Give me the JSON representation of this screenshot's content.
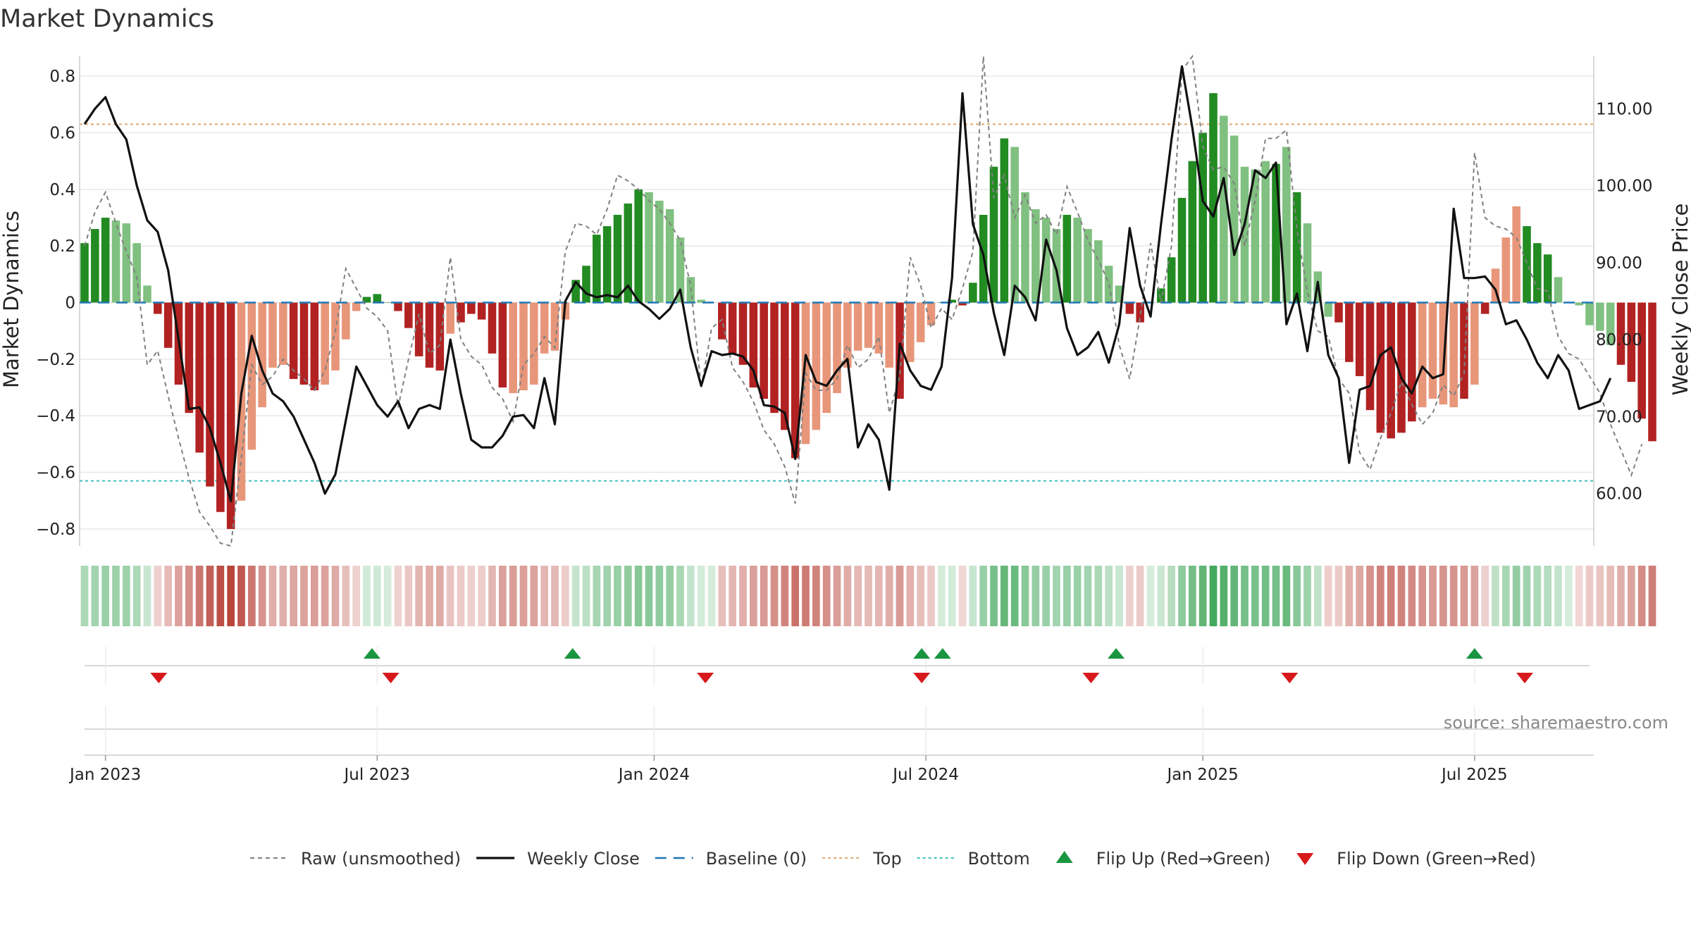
{
  "chart_data": {
    "type": "bar",
    "title": "Market Dynamics",
    "ylabel_left": "Market Dynamics",
    "ylabel_right": "Weekly Close Price",
    "ylim_left": [
      -0.86,
      0.87
    ],
    "ylim_right": [
      53.2,
      116.8
    ],
    "yticks_left": [
      0.8,
      0.6,
      0.4,
      0.2,
      0,
      -0.2,
      -0.4,
      -0.6,
      -0.8
    ],
    "yticks_left_labels": [
      "0.8",
      "0.6",
      "0.4",
      "0.2",
      "0",
      "−0.2",
      "−0.4",
      "−0.6",
      "−0.8"
    ],
    "yticks_right": [
      110,
      100,
      90,
      80,
      70,
      60
    ],
    "yticks_right_labels": [
      "110.00",
      "100.00",
      "90.00",
      "80.00",
      "70.00",
      "60.00"
    ],
    "x_start": "2022-12-19",
    "x_weeks": 145,
    "xticks": [
      {
        "label": "Jan 2023",
        "week": 2
      },
      {
        "label": "Jul 2023",
        "week": 28
      },
      {
        "label": "Jan 2024",
        "week": 54.5
      },
      {
        "label": "Jul 2024",
        "week": 80.5
      },
      {
        "label": "Jan 2025",
        "week": 107
      },
      {
        "label": "Jul 2025",
        "week": 133
      }
    ],
    "top_level": 0.63,
    "bottom_level": -0.63,
    "baseline": 0,
    "colors": {
      "green_strong": "#228B22",
      "green_light": "#80C080",
      "red_strong": "#B22222",
      "red_light": "#E8967A",
      "raw": "#808080",
      "close": "#111111",
      "baseline": "#1f77b4",
      "top": "#E0A870",
      "bottom": "#40C0C0",
      "flip_up": "#1a9641",
      "flip_down": "#d7191c"
    },
    "series": [
      {
        "name": "Market Dynamics",
        "values": [
          0.21,
          0.26,
          0.3,
          0.29,
          0.28,
          0.21,
          0.06,
          -0.04,
          -0.16,
          -0.29,
          -0.39,
          -0.53,
          -0.65,
          -0.74,
          -0.8,
          -0.7,
          -0.52,
          -0.37,
          -0.23,
          -0.22,
          -0.27,
          -0.29,
          -0.31,
          -0.29,
          -0.24,
          -0.13,
          -0.03,
          0.02,
          0.03,
          0.0,
          -0.03,
          -0.09,
          -0.19,
          -0.23,
          -0.24,
          -0.11,
          -0.07,
          -0.04,
          -0.06,
          -0.18,
          -0.3,
          -0.32,
          -0.31,
          -0.29,
          -0.18,
          -0.17,
          -0.06,
          0.08,
          0.13,
          0.24,
          0.27,
          0.31,
          0.35,
          0.4,
          0.39,
          0.36,
          0.33,
          0.23,
          0.09,
          0.01,
          0.0,
          -0.13,
          -0.18,
          -0.22,
          -0.3,
          -0.34,
          -0.39,
          -0.45,
          -0.55,
          -0.5,
          -0.45,
          -0.39,
          -0.32,
          -0.23,
          -0.17,
          -0.16,
          -0.18,
          -0.23,
          -0.34,
          -0.21,
          -0.14,
          -0.08,
          0.0,
          0.01,
          -0.01,
          0.07,
          0.31,
          0.48,
          0.58,
          0.55,
          0.39,
          0.33,
          0.3,
          0.26,
          0.31,
          0.3,
          0.26,
          0.22,
          0.13,
          0.06,
          -0.04,
          -0.07,
          0.0,
          0.05,
          0.16,
          0.37,
          0.5,
          0.6,
          0.74,
          0.66,
          0.59,
          0.48,
          0.47,
          0.5,
          0.49,
          0.55,
          0.39,
          0.28,
          0.11,
          -0.05,
          -0.07,
          -0.21,
          -0.26,
          -0.38,
          -0.46,
          -0.48,
          -0.46,
          -0.42,
          -0.37,
          -0.34,
          -0.36,
          -0.37,
          -0.34,
          -0.29,
          -0.04,
          0.12,
          0.23,
          0.34,
          0.27,
          0.21,
          0.17,
          0.09,
          0.0,
          -0.01,
          -0.08,
          -0.1,
          -0.15,
          -0.22,
          -0.28,
          -0.41,
          -0.49
        ],
        "colors": [
          "g",
          "g",
          "g",
          "gl",
          "gl",
          "gl",
          "gl",
          "r",
          "r",
          "r",
          "r",
          "r",
          "r",
          "r",
          "r",
          "rl",
          "rl",
          "rl",
          "rl",
          "rl",
          "r",
          "r",
          "r",
          "rl",
          "rl",
          "rl",
          "rl",
          "g",
          "g",
          "g",
          "r",
          "r",
          "r",
          "r",
          "r",
          "rl",
          "r",
          "r",
          "r",
          "r",
          "r",
          "rl",
          "rl",
          "rl",
          "rl",
          "rl",
          "rl",
          "g",
          "g",
          "g",
          "g",
          "g",
          "g",
          "g",
          "gl",
          "gl",
          "gl",
          "gl",
          "gl",
          "gl",
          "gl",
          "r",
          "r",
          "r",
          "r",
          "r",
          "r",
          "r",
          "r",
          "rl",
          "rl",
          "rl",
          "rl",
          "rl",
          "rl",
          "rl",
          "rl",
          "rl",
          "r",
          "rl",
          "rl",
          "rl",
          "g",
          "g",
          "r",
          "g",
          "g",
          "g",
          "g",
          "gl",
          "gl",
          "gl",
          "gl",
          "gl",
          "g",
          "gl",
          "gl",
          "gl",
          "gl",
          "gl",
          "r",
          "r",
          "g",
          "g",
          "g",
          "g",
          "g",
          "g",
          "g",
          "gl",
          "gl",
          "gl",
          "gl",
          "gl",
          "g",
          "gl",
          "g",
          "gl",
          "gl",
          "gl",
          "r",
          "r",
          "r",
          "r",
          "r",
          "r",
          "r",
          "r",
          "rl",
          "rl",
          "rl",
          "rl",
          "r",
          "rl",
          "r",
          "rl",
          "rl",
          "rl",
          "g",
          "g",
          "g",
          "gl",
          "gl",
          "gl",
          "gl",
          "gl",
          "gl",
          "r",
          "r",
          "r",
          "r",
          "r",
          "r",
          "r",
          "r"
        ]
      },
      {
        "name": "Raw (unsmoothed)",
        "values": [
          0.2,
          0.32,
          0.39,
          0.28,
          0.18,
          0.09,
          -0.22,
          -0.17,
          -0.33,
          -0.48,
          -0.62,
          -0.74,
          -0.79,
          -0.85,
          -0.86,
          -0.55,
          -0.22,
          -0.29,
          -0.26,
          -0.2,
          -0.24,
          -0.27,
          -0.31,
          -0.24,
          -0.1,
          0.12,
          0.05,
          -0.02,
          -0.05,
          -0.1,
          -0.37,
          -0.2,
          -0.04,
          -0.18,
          -0.15,
          0.16,
          -0.13,
          -0.19,
          -0.22,
          -0.3,
          -0.34,
          -0.42,
          -0.22,
          -0.18,
          -0.12,
          -0.16,
          0.18,
          0.28,
          0.27,
          0.24,
          0.33,
          0.45,
          0.43,
          0.4,
          0.36,
          0.33,
          0.28,
          0.22,
          0.06,
          -0.3,
          -0.09,
          -0.06,
          -0.23,
          -0.28,
          -0.35,
          -0.45,
          -0.5,
          -0.58,
          -0.71,
          -0.25,
          -0.31,
          -0.31,
          -0.27,
          -0.15,
          -0.23,
          -0.2,
          -0.12,
          -0.39,
          -0.26,
          0.16,
          0.06,
          -0.09,
          -0.02,
          -0.06,
          0.05,
          0.18,
          0.87,
          0.37,
          0.45,
          0.3,
          0.38,
          0.28,
          0.31,
          0.24,
          0.41,
          0.32,
          0.22,
          0.15,
          0.07,
          -0.15,
          -0.27,
          -0.05,
          0.21,
          0.0,
          0.2,
          0.82,
          0.87,
          0.55,
          0.47,
          0.48,
          0.42,
          0.2,
          0.36,
          0.58,
          0.58,
          0.61,
          0.26,
          0.04,
          -0.1,
          -0.12,
          -0.27,
          -0.32,
          -0.53,
          -0.59,
          -0.48,
          -0.39,
          -0.28,
          -0.36,
          -0.43,
          -0.39,
          -0.29,
          -0.33,
          -0.25,
          0.53,
          0.3,
          0.27,
          0.26,
          0.23,
          0.14,
          0.05,
          0.04,
          -0.12,
          -0.18,
          -0.2,
          -0.26,
          -0.32,
          -0.43,
          -0.52,
          -0.61,
          -0.5
        ]
      },
      {
        "name": "Weekly Close",
        "values": [
          108.0,
          110.0,
          111.5,
          108.0,
          106.0,
          100.0,
          95.5,
          94.0,
          89.0,
          80.0,
          71.0,
          71.2,
          68.5,
          64.0,
          59.0,
          73.0,
          80.5,
          76.0,
          73.0,
          72.0,
          70.0,
          67.0,
          64.0,
          60.0,
          62.5,
          69.5,
          76.5,
          74.0,
          71.5,
          70.0,
          72.0,
          68.5,
          71.0,
          71.5,
          71.0,
          80.0,
          73.0,
          67.0,
          66.0,
          66.0,
          67.5,
          70.0,
          70.2,
          68.5,
          75.0,
          69.0,
          85.0,
          87.5,
          86.0,
          85.5,
          85.8,
          85.5,
          87.0,
          85.0,
          84.0,
          82.7,
          84.0,
          86.5,
          79.0,
          74.0,
          78.5,
          78.0,
          78.2,
          77.8,
          76.0,
          71.5,
          71.3,
          70.5,
          64.5,
          78.0,
          74.5,
          74.0,
          76.0,
          77.5,
          66.0,
          69.0,
          67.0,
          60.5,
          79.5,
          76.0,
          74.0,
          73.5,
          76.5,
          88.0,
          112.0,
          95.0,
          91.0,
          83.5,
          78.0,
          87.0,
          85.5,
          82.5,
          93.0,
          89.0,
          81.5,
          78.0,
          79.0,
          81.0,
          77.0,
          82.0,
          94.5,
          87.0,
          83.0,
          95.0,
          106.0,
          115.5,
          107.5,
          98.0,
          96.0,
          101.0,
          91.0,
          95.0,
          102.0,
          101.0,
          103.0,
          82.0,
          86.0,
          78.5,
          87.5,
          78.0,
          75.0,
          64.0,
          73.5,
          74.0,
          78.0,
          79.0,
          75.0,
          73.0,
          76.5,
          75.0,
          75.5,
          97.0,
          88.0,
          88.0,
          88.2,
          86.5,
          82.0,
          82.5,
          80.0,
          77.0,
          75.0,
          78.0,
          76.0,
          71.0,
          71.5,
          72.0,
          75.0
        ]
      }
    ],
    "flips_up_weeks": [
      27.5,
      46.7,
      80.1,
      82.1,
      98.7,
      133.0
    ],
    "flips_down_weeks": [
      7.1,
      29.3,
      59.4,
      80.1,
      96.3,
      115.3,
      137.8
    ],
    "legend": [
      {
        "label": "Raw (unsmoothed)",
        "kind": "dash-gray"
      },
      {
        "label": "Weekly Close",
        "kind": "solid-black"
      },
      {
        "label": "Baseline (0)",
        "kind": "dash-blue"
      },
      {
        "label": "Top",
        "kind": "dot-orange"
      },
      {
        "label": "Bottom",
        "kind": "dot-teal"
      },
      {
        "label": "Flip Up (Red→Green)",
        "kind": "tri-up"
      },
      {
        "label": "Flip Down (Green→Red)",
        "kind": "tri-down"
      }
    ],
    "source": "source: sharemaestro.com"
  }
}
